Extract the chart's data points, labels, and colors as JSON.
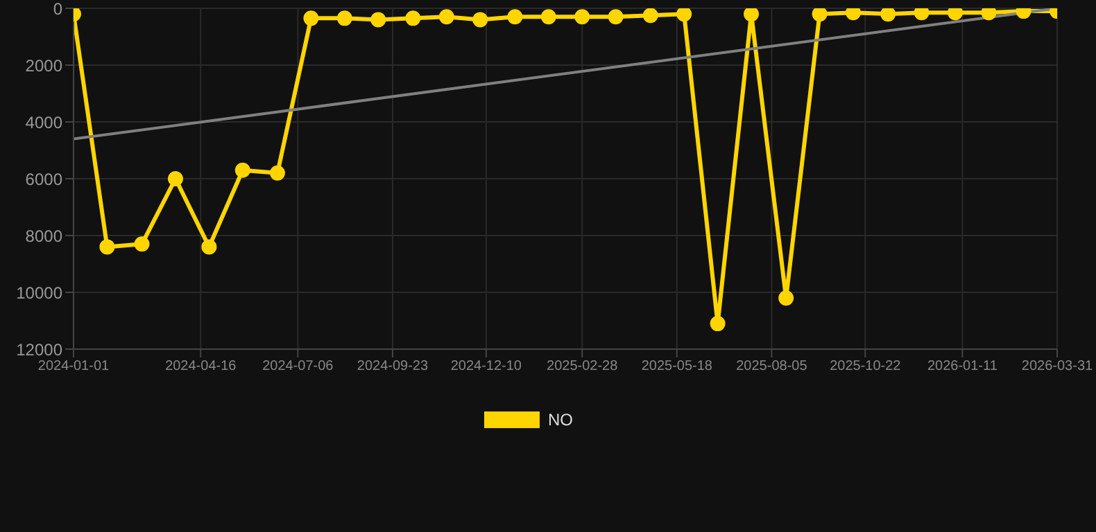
{
  "chart_data": {
    "type": "line",
    "x": [
      "2024-01-01",
      "2024-01-29",
      "2024-02-27",
      "2024-03-26",
      "2024-04-23",
      "2024-05-21",
      "2024-06-19",
      "2024-07-17",
      "2024-08-14",
      "2024-09-11",
      "2024-10-10",
      "2024-11-07",
      "2024-12-05",
      "2025-01-03",
      "2025-01-31",
      "2025-02-28",
      "2025-03-28",
      "2025-04-26",
      "2025-05-24",
      "2025-06-21",
      "2025-07-19",
      "2025-08-17",
      "2025-09-14",
      "2025-10-12",
      "2025-11-10",
      "2025-12-08",
      "2026-01-05",
      "2026-02-02",
      "2026-03-03",
      "2026-03-31"
    ],
    "series": [
      {
        "name": "NO",
        "color": "#ffd500",
        "marker": "circle",
        "values": [
          200,
          8400,
          8300,
          6000,
          8400,
          5700,
          5800,
          350,
          350,
          400,
          350,
          300,
          400,
          300,
          300,
          300,
          300,
          250,
          200,
          11100,
          200,
          10200,
          200,
          150,
          200,
          150,
          150,
          150,
          100,
          100
        ]
      },
      {
        "type": "line",
        "color": "#808080",
        "marker": "none",
        "x": [
          "2024-01-01",
          "2026-03-31"
        ],
        "values": [
          4600,
          0
        ]
      }
    ],
    "xlim": [
      "2024-01-01",
      "2026-03-31"
    ],
    "xticks": [
      {
        "value": "2024-01-01",
        "label": "2024-01-01"
      },
      {
        "value": "2024-04-16",
        "label": "2024-04-16"
      },
      {
        "value": "2024-07-06",
        "label": "2024-07-06"
      },
      {
        "value": "2024-09-23",
        "label": "2024-09-23"
      },
      {
        "value": "2024-12-10",
        "label": "2024-12-10"
      },
      {
        "value": "2025-02-28",
        "label": "2025-02-28"
      },
      {
        "value": "2025-05-18",
        "label": "2025-05-18"
      },
      {
        "value": "2025-08-05",
        "label": "2025-08-05"
      },
      {
        "value": "2025-10-22",
        "label": "2025-10-22"
      },
      {
        "value": "2026-01-11",
        "label": "2026-01-11"
      },
      {
        "value": "2026-03-31",
        "label": "2026-03-31"
      }
    ],
    "ylim": [
      12000,
      0
    ],
    "yticks": [
      0,
      2000,
      4000,
      6000,
      8000,
      10000,
      12000
    ],
    "grid": true,
    "legend": "bottom"
  }
}
